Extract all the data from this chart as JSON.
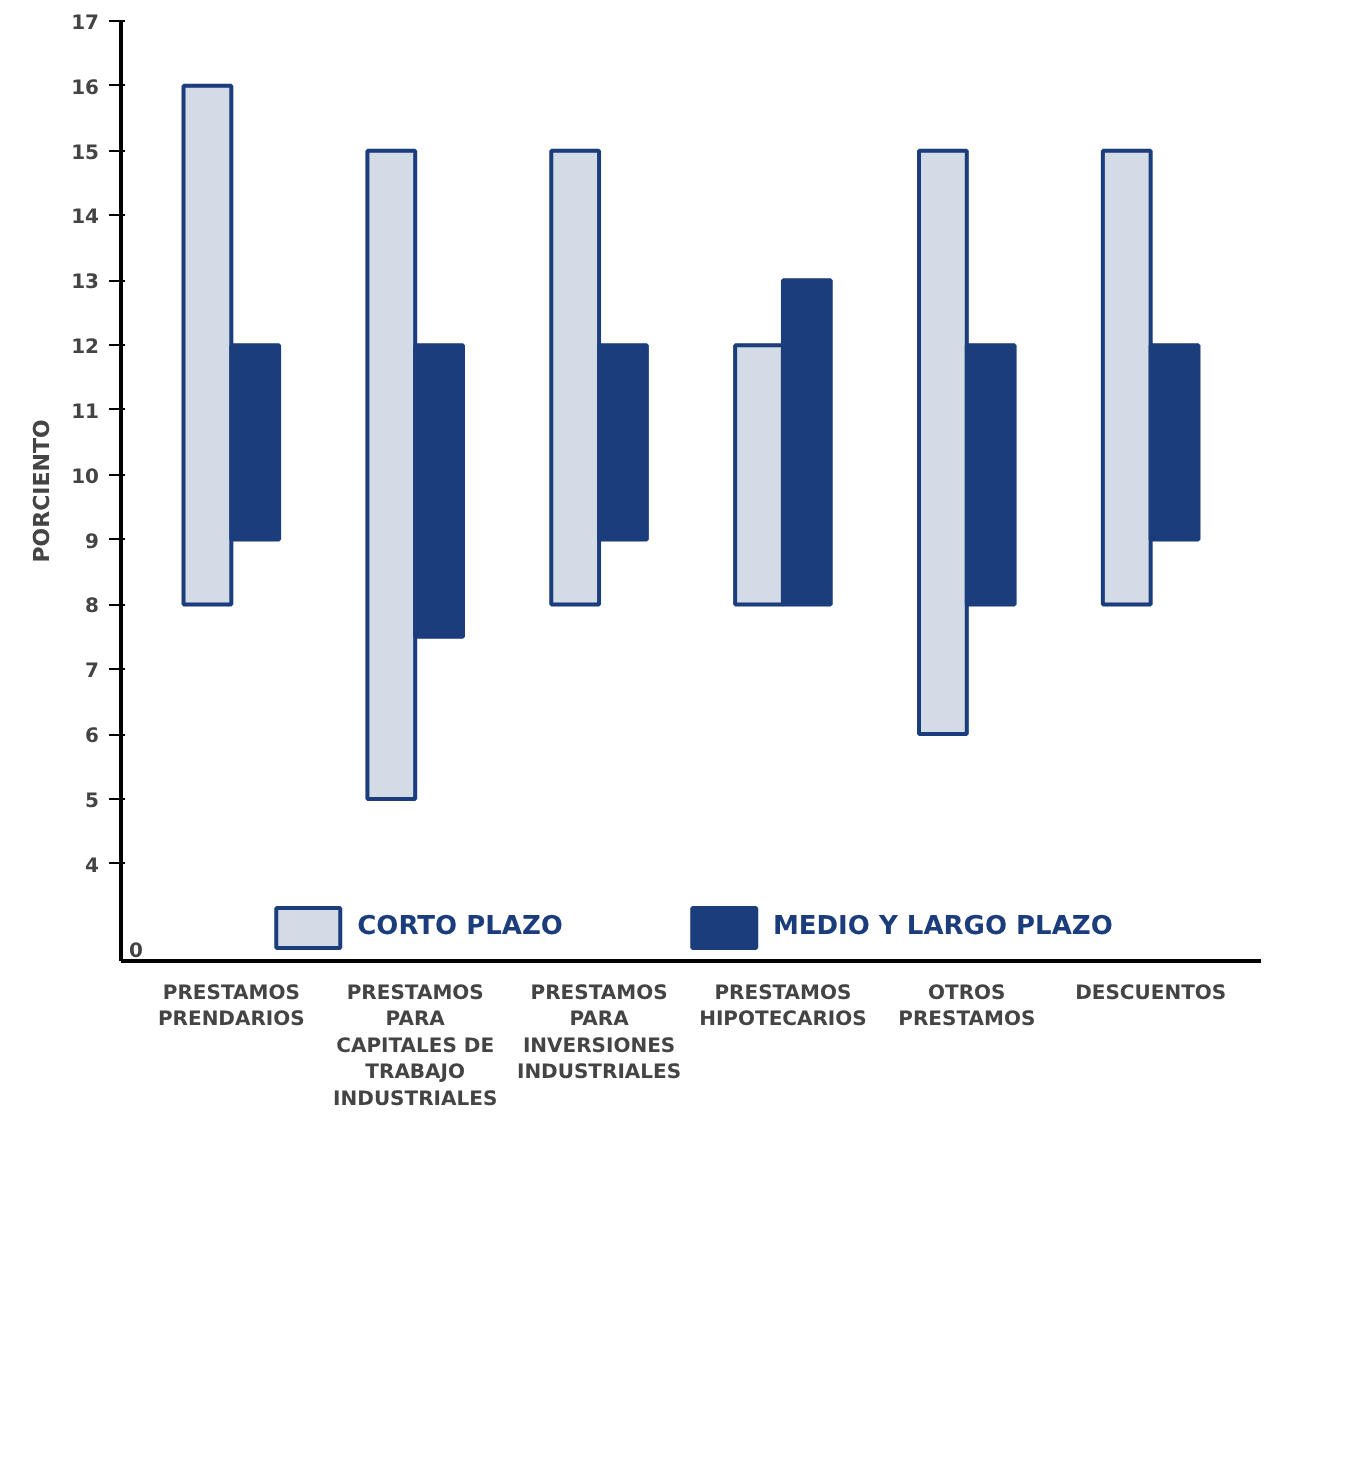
{
  "chart_data": {
    "type": "bar",
    "ylabel": "PORCIENTO",
    "categories": [
      "PRESTAMOS\nPRENDARIOS",
      "PRESTAMOS\nPARA\nCAPITALES DE\nTRABAJO\nINDUSTRIALES",
      "PRESTAMOS\nPARA\nINVERSIONES\nINDUSTRIALES",
      "PRESTAMOS\nHIPOTECARIOS",
      "OTROS\nPRESTAMOS",
      "DESCUENTOS"
    ],
    "series": [
      {
        "name": "CORTO PLAZO",
        "color": "#d3dbe6",
        "base": [
          8,
          5,
          8,
          8,
          6,
          8
        ],
        "values": [
          8,
          10,
          7,
          4,
          9,
          7
        ]
      },
      {
        "name": "MEDIO Y LARGO PLAZO",
        "color": "#1b3d7c",
        "base": [
          9,
          7.5,
          9,
          8,
          8,
          9
        ],
        "values": [
          3,
          4.5,
          3,
          5,
          4,
          3
        ]
      }
    ],
    "ylim": [
      2.5,
      17
    ],
    "yticks": [
      4,
      5,
      6,
      7,
      8,
      9,
      10,
      11,
      12,
      13,
      14,
      15,
      16,
      17
    ],
    "annotations": [
      "0"
    ],
    "grid": false,
    "legend": "bottom"
  }
}
